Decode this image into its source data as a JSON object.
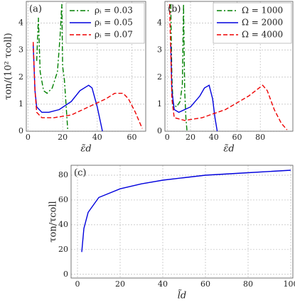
{
  "chart_data": [
    {
      "type": "line",
      "annotation": "(a)",
      "ylabel": "τon/(10² τcoll)",
      "xlabel": "ε̃d",
      "xlim": [
        -1,
        68
      ],
      "ylim": [
        0,
        4.8
      ],
      "xticks": [
        0,
        20,
        40,
        60
      ],
      "yticks": [
        0,
        1,
        2,
        3,
        4
      ],
      "grid": true,
      "legend": "upper right",
      "series": [
        {
          "name": "ρᵢ = 0.03",
          "color": "#008000",
          "linestyle": "dashdot",
          "x": [
            5,
            6,
            7,
            9,
            11,
            14,
            17,
            18.5,
            19.5,
            20,
            21,
            23
          ],
          "values": [
            2.6,
            4.2,
            2.2,
            1.5,
            1.4,
            1.6,
            2.2,
            3.5,
            4.7,
            2.4,
            1.9,
            0
          ]
        },
        {
          "name": "ρᵢ = 0.05",
          "color": "#0000dd",
          "linestyle": "solid",
          "x": [
            3,
            4,
            5,
            8,
            12,
            18,
            25,
            30,
            35,
            37,
            40,
            43
          ],
          "values": [
            3.2,
            1.5,
            0.9,
            0.7,
            0.7,
            0.8,
            1.1,
            1.5,
            1.7,
            1.6,
            0.9,
            0
          ]
        },
        {
          "name": "ρᵢ = 0.07",
          "color": "#ee0000",
          "linestyle": "dashed",
          "x": [
            3,
            4,
            5,
            8,
            15,
            25,
            35,
            45,
            50,
            55,
            58,
            62,
            66
          ],
          "values": [
            3.3,
            1.5,
            0.7,
            0.5,
            0.5,
            0.6,
            0.9,
            1.2,
            1.4,
            1.4,
            1.2,
            0.7,
            0.1
          ]
        }
      ]
    },
    {
      "type": "line",
      "annotation": "(b)",
      "xlabel": "ε̃d",
      "xlim": [
        -2,
        108
      ],
      "ylim": [
        0,
        4.8
      ],
      "xticks": [
        0,
        20,
        40,
        60,
        80
      ],
      "yticks": [
        0,
        1,
        2,
        3,
        4
      ],
      "grid": true,
      "legend": "upper right",
      "series": [
        {
          "name": "Ω = 1000",
          "color": "#008000",
          "linestyle": "dashdot",
          "x": [
            3,
            4,
            5,
            8,
            11,
            13,
            14,
            15,
            16,
            17
          ],
          "values": [
            4.7,
            2,
            1.0,
            0.9,
            1.1,
            1.7,
            4.7,
            1.5,
            0.5,
            0
          ]
        },
        {
          "name": "Ω = 2000",
          "color": "#0000dd",
          "linestyle": "solid",
          "x": [
            3,
            4,
            6,
            10,
            20,
            28,
            32,
            36,
            39,
            41,
            43
          ],
          "values": [
            3.2,
            1.5,
            0.8,
            0.7,
            0.9,
            1.3,
            1.6,
            1.7,
            1.2,
            0.5,
            0
          ]
        },
        {
          "name": "Ω = 4000",
          "color": "#ee0000",
          "linestyle": "dashed",
          "x": [
            2,
            3,
            4,
            6,
            15,
            30,
            50,
            70,
            82,
            86,
            92,
            98,
            103
          ],
          "values": [
            4.7,
            3,
            1.2,
            0.5,
            0.4,
            0.5,
            0.8,
            1.3,
            1.7,
            1.5,
            0.8,
            0.3,
            0.05
          ]
        }
      ]
    },
    {
      "type": "line",
      "annotation": "(c)",
      "ylabel": "τon/τcoll",
      "xlabel": "l̃d",
      "xlim": [
        -3,
        101
      ],
      "ylim": [
        -3,
        88
      ],
      "xticks": [
        0,
        20,
        40,
        60,
        80,
        100
      ],
      "yticks": [
        0,
        20,
        40,
        60,
        80
      ],
      "grid": true,
      "series": [
        {
          "color": "#0000dd",
          "linestyle": "solid",
          "x": [
            2,
            3,
            5,
            10,
            20,
            30,
            40,
            50,
            60,
            80,
            100
          ],
          "values": [
            18,
            37,
            50,
            62,
            69,
            73,
            76,
            78,
            80,
            82,
            84
          ]
        }
      ]
    }
  ]
}
